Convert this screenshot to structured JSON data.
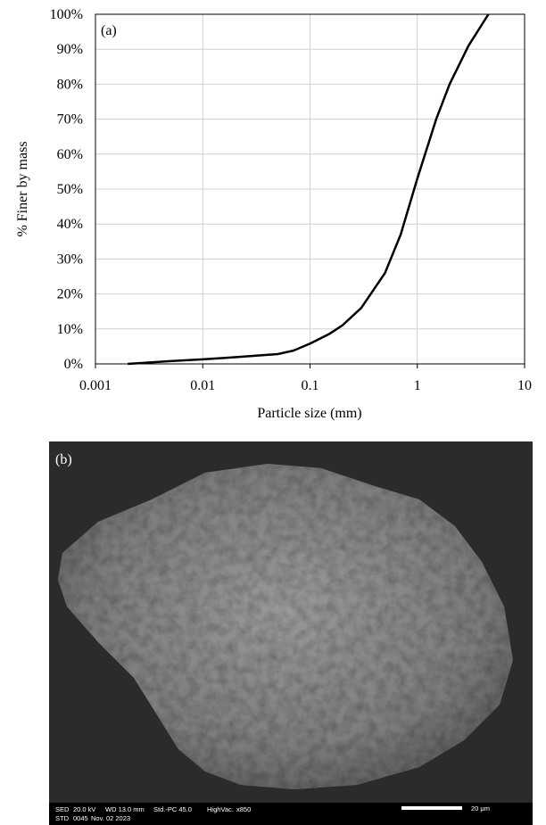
{
  "chart_data": {
    "type": "line",
    "annotation": "(a)",
    "x_label": "Particle size (mm)",
    "y_label": "% Finer by mass",
    "x": [
      0.002,
      0.005,
      0.01,
      0.02,
      0.05,
      0.07,
      0.1,
      0.15,
      0.2,
      0.3,
      0.5,
      0.7,
      1.0,
      1.5,
      2,
      3,
      4.6
    ],
    "values": [
      0,
      0.8,
      1.3,
      1.9,
      2.8,
      3.8,
      5.8,
      8.5,
      11,
      16,
      26,
      37,
      53,
      70,
      80,
      91,
      100
    ],
    "color": "#000000",
    "log_x": true,
    "grid": true,
    "xlim": [
      0.001,
      10
    ],
    "xticks": [
      0.001,
      0.01,
      0.1,
      1,
      10
    ],
    "ylim": [
      0,
      100
    ],
    "yticks": [
      {
        "value": 0,
        "label": "0%"
      },
      {
        "value": 10,
        "label": "10%"
      },
      {
        "value": 20,
        "label": "20%"
      },
      {
        "value": 30,
        "label": "30%"
      },
      {
        "value": 40,
        "label": "40%"
      },
      {
        "value": 50,
        "label": "50%"
      },
      {
        "value": 60,
        "label": "60%"
      },
      {
        "value": 70,
        "label": "70%"
      },
      {
        "value": 80,
        "label": "80%"
      },
      {
        "value": 90,
        "label": "90%"
      },
      {
        "value": 100,
        "label": "100%"
      }
    ]
  },
  "sem_image": {
    "label": "(b)",
    "info_row_1": [
      "SED",
      "20.0 kV",
      "WD 13.0 mm",
      "Std.-PC 45.0",
      "HighVac.",
      "x850"
    ],
    "info_row_2": [
      "STD",
      "0045",
      "Nov. 02 2023"
    ],
    "scale_bar": "20 μm"
  }
}
